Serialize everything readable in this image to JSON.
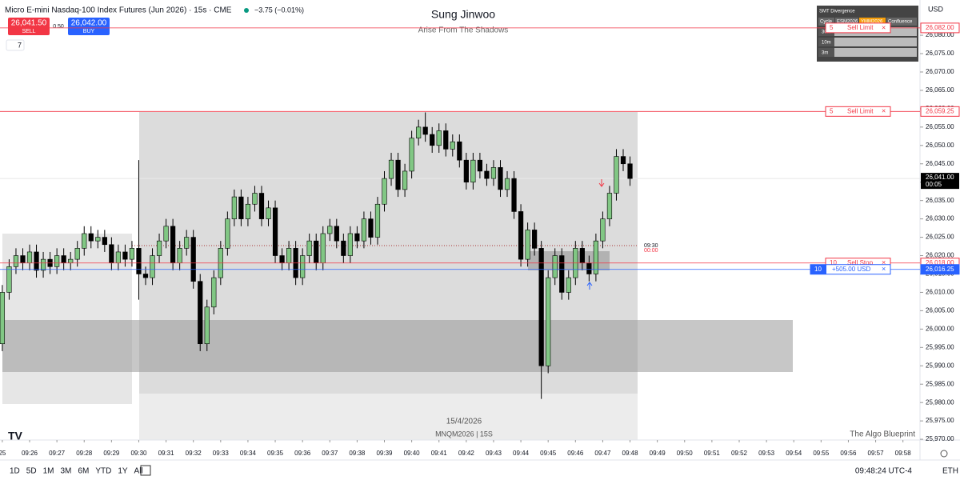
{
  "header": {
    "symbol": "Micro E-mini Nasdaq-100 Index Futures (Jun 2026) · 15s · CME",
    "change": "−3.75 (−0.01%)",
    "sell_price": "26,041.50",
    "sell": "SELL",
    "spread": "0.50",
    "buy_price": "26,042.00",
    "buy": "BUY",
    "indicators": "7",
    "currency": "USD"
  },
  "watermark": {
    "title": "Sung Jinwoo",
    "subtitle": "Arise From The Shadows",
    "date": "15/4/2026",
    "symbol": "MNQM2026 | 15S",
    "brand": "The Algo Blueprint",
    "cursor_time": "09:30",
    "cursor_sub": "00:00"
  },
  "smt": {
    "title": "SMT Divergence",
    "columns": [
      "Cycle",
      "ESM2026",
      "YMM2026",
      "Confluence"
    ],
    "rows": [
      "30m",
      "10m",
      "3m"
    ]
  },
  "toolbar": {
    "ranges": [
      "1D",
      "5D",
      "1M",
      "3M",
      "6M",
      "YTD",
      "1Y",
      "All"
    ],
    "clock": "09:48:24 UTC-4",
    "session": "ETH"
  },
  "chart_data": {
    "type": "candlestick",
    "up_color": "#81c784",
    "down_color": "#000000",
    "xlim": [
      -0.34,
      134.5
    ],
    "ylim": [
      25969.8,
      26089.6
    ],
    "xticks": [
      {
        "value": 0,
        "label": "25"
      },
      {
        "value": 4,
        "label": "09:26"
      },
      {
        "value": 8,
        "label": "09:27"
      },
      {
        "value": 12,
        "label": "09:28"
      },
      {
        "value": 16,
        "label": "09:29"
      },
      {
        "value": 20,
        "label": "09:30"
      },
      {
        "value": 24,
        "label": "09:31"
      },
      {
        "value": 28,
        "label": "09:32"
      },
      {
        "value": 32,
        "label": "09:33"
      },
      {
        "value": 36,
        "label": "09:34"
      },
      {
        "value": 40,
        "label": "09:35"
      },
      {
        "value": 44,
        "label": "09:36"
      },
      {
        "value": 48,
        "label": "09:37"
      },
      {
        "value": 52,
        "label": "09:38"
      },
      {
        "value": 56,
        "label": "09:39"
      },
      {
        "value": 60,
        "label": "09:40"
      },
      {
        "value": 64,
        "label": "09:41"
      },
      {
        "value": 68,
        "label": "09:42"
      },
      {
        "value": 72,
        "label": "09:43"
      },
      {
        "value": 76,
        "label": "09:44"
      },
      {
        "value": 80,
        "label": "09:45"
      },
      {
        "value": 84,
        "label": "09:46"
      },
      {
        "value": 88,
        "label": "09:47"
      },
      {
        "value": 92,
        "label": "09:48"
      },
      {
        "value": 96,
        "label": "09:49"
      },
      {
        "value": 100,
        "label": "09:50"
      },
      {
        "value": 104,
        "label": "09:51"
      },
      {
        "value": 108,
        "label": "09:52"
      },
      {
        "value": 112,
        "label": "09:53"
      },
      {
        "value": 116,
        "label": "09:54"
      },
      {
        "value": 120,
        "label": "09:55"
      },
      {
        "value": 124,
        "label": "09:56"
      },
      {
        "value": 128,
        "label": "09:57"
      },
      {
        "value": 132,
        "label": "09:58"
      }
    ],
    "yticks": [
      {
        "value": 25970,
        "label": "25,970.00"
      },
      {
        "value": 25975,
        "label": "25,975.00"
      },
      {
        "value": 25980,
        "label": "25,980.00"
      },
      {
        "value": 25985,
        "label": "25,985.00"
      },
      {
        "value": 25990,
        "label": "25,990.00"
      },
      {
        "value": 25995,
        "label": "25,995.00"
      },
      {
        "value": 26000,
        "label": "26,000.00"
      },
      {
        "value": 26005,
        "label": "26,005.00"
      },
      {
        "value": 26010,
        "label": "26,010.00"
      },
      {
        "value": 26015,
        "label": "26,015.00"
      },
      {
        "value": 26020,
        "label": "26,020.00"
      },
      {
        "value": 26025,
        "label": "26,025.00"
      },
      {
        "value": 26030,
        "label": "26,030.00"
      },
      {
        "value": 26035,
        "label": "26,035.00"
      },
      {
        "value": 26040,
        "label": "26,040.00"
      },
      {
        "value": 26045,
        "label": "26,045.00"
      },
      {
        "value": 26050,
        "label": "26,050.00"
      },
      {
        "value": 26055,
        "label": "26,055.00"
      },
      {
        "value": 26060,
        "label": "26,060.00"
      },
      {
        "value": 26065,
        "label": "26,065.00"
      },
      {
        "value": 26070,
        "label": "26,070.00"
      },
      {
        "value": 26075,
        "label": "26,075.00"
      },
      {
        "value": 26080,
        "label": "26,080.00"
      }
    ],
    "open": [
      25996,
      26010,
      26017,
      26020,
      26018,
      26021,
      26016,
      26019,
      26017,
      26020,
      26018,
      26019,
      26022,
      26026,
      26024,
      26025,
      26023,
      26018,
      26021,
      26019,
      26022,
      26015,
      26014,
      26020,
      26024,
      26028,
      26018,
      26022,
      26025,
      26013,
      25996,
      26006,
      26014,
      26022,
      26030,
      26036,
      26030,
      26034,
      26037,
      26030,
      26033,
      26020,
      26018,
      26022,
      26014,
      26020,
      26024,
      26018,
      26026,
      26028,
      26024,
      26020,
      26026,
      26024,
      26030,
      26025,
      26034,
      26041,
      26046,
      26038,
      26043,
      26052,
      26055,
      26053,
      26050,
      26054,
      26049,
      26051,
      26046,
      26040,
      26046,
      26043,
      26041,
      26044,
      26038,
      26041,
      26032,
      26019,
      26027,
      26022,
      25990,
      26014,
      26020,
      26010,
      26014,
      26022,
      26018,
      26015,
      26024,
      26030,
      26037,
      26047,
      26045
    ],
    "high": [
      26012,
      26019,
      26022,
      26022,
      26023,
      26023,
      26021,
      26021,
      26022,
      26022,
      26021,
      26024,
      26028,
      26028,
      26027,
      26027,
      26025,
      26023,
      26023,
      26024,
      26046,
      26017,
      26022,
      26026,
      26030,
      26030,
      26024,
      26027,
      26027,
      26015,
      26008,
      26016,
      26024,
      26032,
      26038,
      26038,
      26036,
      26039,
      26039,
      26035,
      26035,
      26022,
      26024,
      26024,
      26022,
      26026,
      26026,
      26028,
      26030,
      26030,
      26026,
      26028,
      26028,
      26032,
      26032,
      26036,
      26043,
      26048,
      26048,
      26045,
      26054,
      26057,
      26059,
      26055,
      26056,
      26056,
      26053,
      26053,
      26048,
      26048,
      26048,
      26045,
      26046,
      26046,
      26043,
      26043,
      26034,
      26029,
      26029,
      26024,
      26016,
      26022,
      26022,
      26016,
      26024,
      26024,
      26020,
      26026,
      26032,
      26039,
      26049,
      26049,
      26047
    ],
    "low": [
      25994,
      26008,
      26015,
      26016,
      26016,
      26014,
      26014,
      26015,
      26015,
      26016,
      26016,
      26017,
      26020,
      26022,
      26022,
      26021,
      26016,
      26016,
      26017,
      26017,
      26008,
      26012,
      26012,
      26018,
      26022,
      26016,
      26016,
      26020,
      26011,
      25994,
      25994,
      26004,
      26012,
      26020,
      26028,
      26028,
      26028,
      26032,
      26028,
      26028,
      26018,
      26016,
      26016,
      26012,
      26012,
      26018,
      26016,
      26016,
      26024,
      26022,
      26018,
      26018,
      26022,
      26022,
      26023,
      26023,
      26032,
      26039,
      26036,
      26036,
      26041,
      26050,
      26051,
      26048,
      26048,
      26047,
      26047,
      26044,
      26038,
      26038,
      26041,
      26039,
      26039,
      26036,
      26036,
      26030,
      26017,
      26017,
      26020,
      25981,
      25988,
      26012,
      26008,
      26008,
      26012,
      26016,
      26013,
      26013,
      26022,
      26028,
      26035,
      26043,
      26039
    ],
    "close": [
      26010,
      26017,
      26020,
      26018,
      26021,
      26016,
      26019,
      26017,
      26020,
      26018,
      26019,
      26022,
      26026,
      26024,
      26025,
      26023,
      26018,
      26021,
      26019,
      26022,
      26015,
      26014,
      26020,
      26024,
      26028,
      26018,
      26022,
      26025,
      26013,
      25996,
      26006,
      26014,
      26022,
      26030,
      26036,
      26030,
      26034,
      26037,
      26030,
      26033,
      26020,
      26018,
      26022,
      26014,
      26020,
      26024,
      26018,
      26026,
      26028,
      26024,
      26020,
      26026,
      26024,
      26030,
      26025,
      26034,
      26041,
      26046,
      26038,
      26043,
      26052,
      26055,
      26053,
      26050,
      26054,
      26049,
      26051,
      26046,
      26040,
      26046,
      26043,
      26041,
      26044,
      26038,
      26041,
      26032,
      26019,
      26027,
      26022,
      25990,
      26014,
      26020,
      26010,
      26014,
      26022,
      26018,
      26015,
      26024,
      26030,
      26037,
      26047,
      26045,
      26041
    ],
    "price_lines": [
      {
        "value": 26082,
        "label": "26,082.00",
        "color": "#f23645",
        "qty": "5",
        "order": "Sell Limit"
      },
      {
        "value": 26059.25,
        "label": "26,059.25",
        "color": "#f23645",
        "qty": "5",
        "order": "Sell Limit"
      },
      {
        "value": 26018,
        "label": "26,018.00",
        "color": "#f23645",
        "qty": "10",
        "order": "Sell Stop"
      },
      {
        "value": 26016.25,
        "label": "26,016.25",
        "color": "#2962ff",
        "qty": "10",
        "order": "+505.00 USD"
      }
    ],
    "last": {
      "value": 26041,
      "label": "26,041.00",
      "countdown": "00:05"
    }
  }
}
